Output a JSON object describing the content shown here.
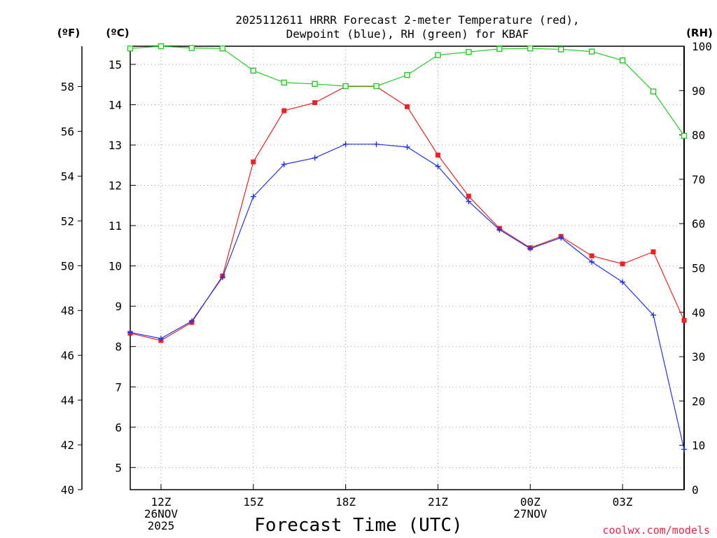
{
  "chart_data": {
    "type": "line",
    "title": "2025112611 HRRR Forecast 2-meter Temperature (red),",
    "subtitle": "Dewpoint (blue), RH (green) for KBAF",
    "xlabel": "Forecast Time (UTC)",
    "left_outer_unit": "(ºF)",
    "left_inner_unit": "(ºC)",
    "right_unit": "(RH)",
    "watermark": "coolwx.com/models",
    "x_hours": [
      11,
      12,
      13,
      14,
      15,
      16,
      17,
      18,
      19,
      20,
      21,
      22,
      23,
      24,
      25,
      26,
      27,
      28,
      29
    ],
    "xlim": [
      11,
      29
    ],
    "x_ticks": [
      {
        "hour": 12,
        "lines": [
          "12Z",
          "26NOV",
          "2025"
        ]
      },
      {
        "hour": 15,
        "lines": [
          "15Z"
        ]
      },
      {
        "hour": 18,
        "lines": [
          "18Z"
        ]
      },
      {
        "hour": 21,
        "lines": [
          "21Z"
        ]
      },
      {
        "hour": 24,
        "lines": [
          "00Z",
          "27NOV"
        ]
      },
      {
        "hour": 27,
        "lines": [
          "03Z"
        ]
      }
    ],
    "celsius_axis": {
      "ylim": [
        4.45,
        15.45
      ],
      "ticks": [
        "5",
        "6",
        "7",
        "8",
        "9",
        "10",
        "11",
        "12",
        "13",
        "14",
        "15"
      ]
    },
    "fahrenheit_axis": {
      "ylim": [
        40,
        59.8
      ],
      "ticks": [
        "40",
        "42",
        "44",
        "46",
        "48",
        "50",
        "52",
        "54",
        "56",
        "58"
      ]
    },
    "rh_axis": {
      "ylim": [
        0,
        100
      ],
      "ticks": [
        "0",
        "10",
        "20",
        "30",
        "40",
        "50",
        "60",
        "70",
        "80",
        "90",
        "100"
      ]
    },
    "series": [
      {
        "name": "Temperature",
        "unit": "C",
        "color": "#ee2222",
        "values": [
          8.33,
          8.15,
          8.6,
          9.75,
          12.58,
          13.85,
          14.05,
          14.45,
          14.45,
          13.95,
          12.75,
          11.73,
          10.93,
          10.45,
          10.73,
          10.25,
          10.05,
          10.35,
          8.65
        ]
      },
      {
        "name": "Dewpoint",
        "unit": "C",
        "color": "#2233ee",
        "values": [
          8.35,
          8.2,
          8.63,
          9.72,
          11.72,
          12.52,
          12.68,
          13.02,
          13.02,
          12.95,
          12.47,
          11.6,
          10.9,
          10.43,
          10.7,
          10.1,
          9.6,
          8.78,
          5.45
        ]
      },
      {
        "name": "RH",
        "unit": "%",
        "color": "#22cc22",
        "values": [
          99.5,
          100,
          99.6,
          99.5,
          94.5,
          91.8,
          91.5,
          91.0,
          91.0,
          93.5,
          98.0,
          98.7,
          99.4,
          99.5,
          99.3,
          98.8,
          96.8,
          89.8,
          79.8
        ]
      }
    ]
  }
}
